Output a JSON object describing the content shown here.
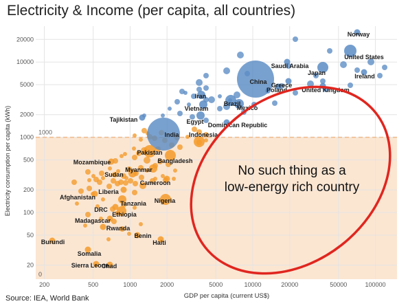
{
  "title": "Electricity & Income (per capita, all countries)",
  "source": "Source: IEA, World Bank",
  "colors": {
    "high_energy": "#5b8cc4",
    "low_energy": "#f39a2a",
    "low_region_fill": "#fbe6d2",
    "threshold_line": "#f0b98a",
    "ellipse": "#e0261f"
  },
  "annotation": {
    "line1": "No such thing as a",
    "line2": "low-energy rich country"
  },
  "chart_data": {
    "type": "scatter",
    "title": "Electricity & Income (per capita, all countries)",
    "xlabel": "GDP per capita (current US$)",
    "ylabel": "Electricity consumption per capita (kWh)",
    "x_scale": "log",
    "y_scale": "log",
    "xlim": [
      170,
      150000
    ],
    "ylim": [
      13,
      30000
    ],
    "x_ticks": [
      200,
      500,
      1000,
      2000,
      5000,
      10000,
      20000,
      50000,
      100000
    ],
    "x_tick_labels": [
      "200",
      "500",
      "1000",
      "2000",
      "5000",
      "10000",
      "20000",
      "50000",
      "100000"
    ],
    "y_ticks": [
      20,
      50,
      100,
      200,
      500,
      1000,
      2000,
      5000,
      10000,
      20000
    ],
    "y_tick_labels": [
      "20",
      "50",
      "100",
      "200",
      "500",
      "1000",
      "2000",
      "5000",
      "10000",
      "20000"
    ],
    "threshold": {
      "y": 1000,
      "label": "1000"
    },
    "zero_label": "0",
    "grid": true,
    "labeled_points": [
      {
        "name": "Norway",
        "x": 75000,
        "y": 23000,
        "group": "high"
      },
      {
        "name": "United States",
        "x": 62000,
        "y": 12500,
        "group": "high"
      },
      {
        "name": "Saudi Arabia",
        "x": 22000,
        "y": 9500,
        "group": "high"
      },
      {
        "name": "Japan",
        "x": 40000,
        "y": 7500,
        "group": "high"
      },
      {
        "name": "Ireland",
        "x": 75000,
        "y": 6200,
        "group": "high"
      },
      {
        "name": "China",
        "x": 12000,
        "y": 5200,
        "group": "high"
      },
      {
        "name": "Greece",
        "x": 19000,
        "y": 5000,
        "group": "high"
      },
      {
        "name": "Poland",
        "x": 14500,
        "y": 4200,
        "group": "high"
      },
      {
        "name": "United Kingdom",
        "x": 42000,
        "y": 4600,
        "group": "high"
      },
      {
        "name": "Iran",
        "x": 3200,
        "y": 3200,
        "group": "high"
      },
      {
        "name": "Brazil",
        "x": 7500,
        "y": 2600,
        "group": "high"
      },
      {
        "name": "Mexico",
        "x": 10000,
        "y": 2200,
        "group": "high"
      },
      {
        "name": "Vietnam",
        "x": 3000,
        "y": 2100,
        "group": "high"
      },
      {
        "name": "Tajikistan",
        "x": 900,
        "y": 1750,
        "group": "high"
      },
      {
        "name": "Egypt",
        "x": 3300,
        "y": 1650,
        "group": "high"
      },
      {
        "name": "Dominican Republic",
        "x": 8000,
        "y": 1550,
        "group": "high"
      },
      {
        "name": "India",
        "x": 2000,
        "y": 1000,
        "group": "high"
      },
      {
        "name": "Indonesia",
        "x": 3900,
        "y": 1050,
        "group": "low"
      },
      {
        "name": "Pakistan",
        "x": 1400,
        "y": 560,
        "group": "low"
      },
      {
        "name": "Bangladesh",
        "x": 2300,
        "y": 420,
        "group": "low"
      },
      {
        "name": "Mozambique",
        "x": 500,
        "y": 430,
        "group": "low"
      },
      {
        "name": "Myanmar",
        "x": 1300,
        "y": 320,
        "group": "low"
      },
      {
        "name": "Sudan",
        "x": 800,
        "y": 280,
        "group": "low"
      },
      {
        "name": "Cameroon",
        "x": 1500,
        "y": 210,
        "group": "low"
      },
      {
        "name": "Liberia",
        "x": 600,
        "y": 160,
        "group": "low"
      },
      {
        "name": "Afghanistan",
        "x": 450,
        "y": 130,
        "group": "low"
      },
      {
        "name": "Nigeria",
        "x": 2000,
        "y": 118,
        "group": "low"
      },
      {
        "name": "Tanzania",
        "x": 1000,
        "y": 115,
        "group": "low"
      },
      {
        "name": "DRC",
        "x": 530,
        "y": 96,
        "group": "low"
      },
      {
        "name": "Ethiopia",
        "x": 850,
        "y": 88,
        "group": "low"
      },
      {
        "name": "Madagascar",
        "x": 480,
        "y": 70,
        "group": "low"
      },
      {
        "name": "Rwanda",
        "x": 770,
        "y": 55,
        "group": "low"
      },
      {
        "name": "Benin",
        "x": 1200,
        "y": 42,
        "group": "low"
      },
      {
        "name": "Burundi",
        "x": 270,
        "y": 34,
        "group": "low"
      },
      {
        "name": "Haiti",
        "x": 1400,
        "y": 32,
        "group": "low"
      },
      {
        "name": "Somalia",
        "x": 500,
        "y": 26,
        "group": "low"
      },
      {
        "name": "Sierra Leone",
        "x": 520,
        "y": 15,
        "group": "low"
      },
      {
        "name": "Chad",
        "x": 640,
        "y": 15,
        "group": "low"
      }
    ]
  }
}
